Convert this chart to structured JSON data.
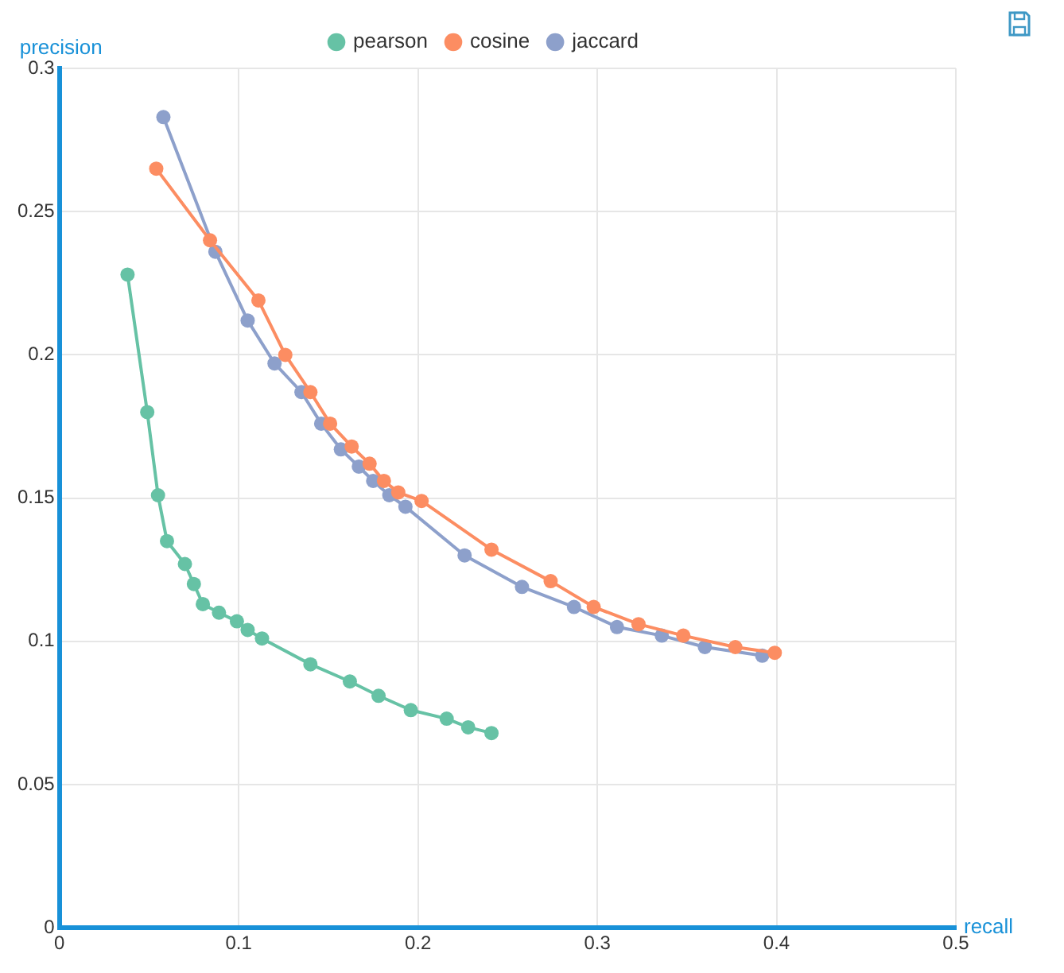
{
  "chart_data": {
    "type": "line",
    "xlabel": "recall",
    "ylabel": "precision",
    "xlim": [
      0,
      0.5
    ],
    "xticks": [
      0,
      0.1,
      0.2,
      0.3,
      0.4,
      0.5
    ],
    "ylim": [
      0,
      0.3
    ],
    "yticks": [
      0,
      0.05,
      0.1,
      0.15,
      0.2,
      0.25,
      0.3
    ],
    "grid": true,
    "legend": "top",
    "marker": "circle",
    "line_style": "solid",
    "series": [
      {
        "name": "pearson",
        "color": "#66c2a5",
        "x": [
          0.038,
          0.049,
          0.055,
          0.06,
          0.07,
          0.075,
          0.08,
          0.089,
          0.099,
          0.105,
          0.113,
          0.14,
          0.162,
          0.178,
          0.196,
          0.216,
          0.228,
          0.241
        ],
        "values": [
          0.228,
          0.18,
          0.151,
          0.135,
          0.127,
          0.12,
          0.113,
          0.11,
          0.107,
          0.104,
          0.101,
          0.092,
          0.086,
          0.081,
          0.076,
          0.073,
          0.07,
          0.068
        ]
      },
      {
        "name": "cosine",
        "color": "#fc8d62",
        "x": [
          0.054,
          0.084,
          0.111,
          0.126,
          0.14,
          0.151,
          0.163,
          0.173,
          0.181,
          0.189,
          0.202,
          0.241,
          0.274,
          0.298,
          0.323,
          0.348,
          0.377,
          0.399
        ],
        "values": [
          0.265,
          0.24,
          0.219,
          0.2,
          0.187,
          0.176,
          0.168,
          0.162,
          0.156,
          0.152,
          0.149,
          0.132,
          0.121,
          0.112,
          0.106,
          0.102,
          0.098,
          0.096
        ]
      },
      {
        "name": "jaccard",
        "color": "#8da0cb",
        "x": [
          0.058,
          0.087,
          0.105,
          0.12,
          0.135,
          0.146,
          0.157,
          0.167,
          0.175,
          0.184,
          0.193,
          0.226,
          0.258,
          0.287,
          0.311,
          0.336,
          0.36,
          0.392
        ],
        "values": [
          0.283,
          0.236,
          0.212,
          0.197,
          0.187,
          0.176,
          0.167,
          0.161,
          0.156,
          0.151,
          0.147,
          0.13,
          0.119,
          0.112,
          0.105,
          0.102,
          0.098,
          0.095
        ]
      }
    ]
  }
}
